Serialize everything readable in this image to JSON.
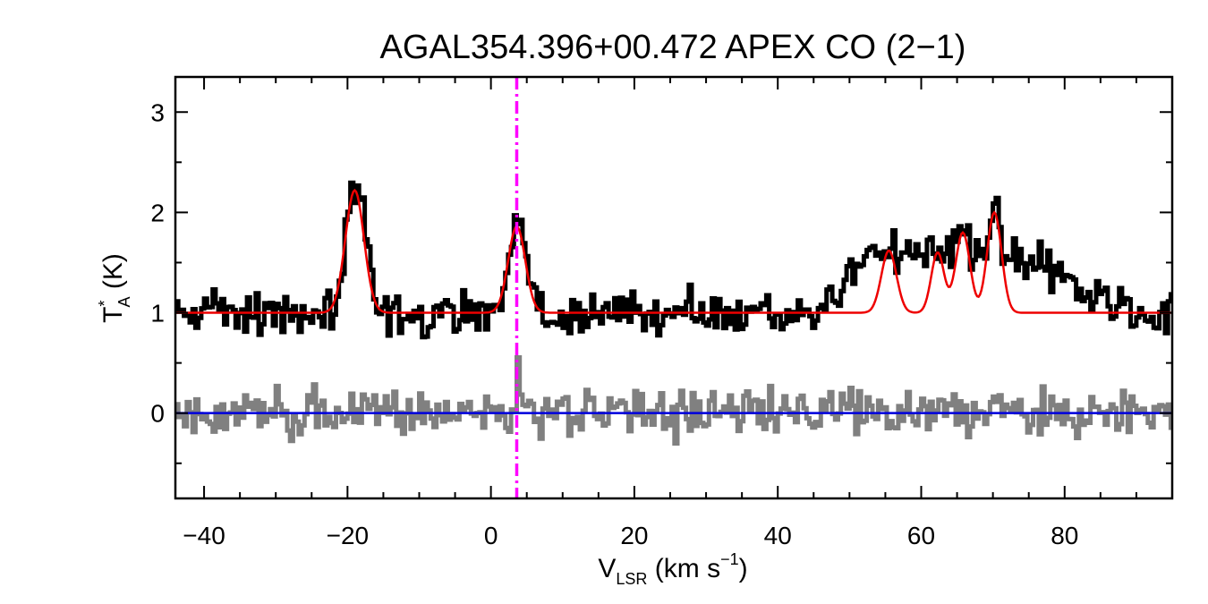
{
  "chart_data": {
    "type": "line",
    "title": "AGAL354.396+00.472  APEX CO (2−1)",
    "xlabel": {
      "main": "V",
      "sub": "LSR",
      "unit_open": " (km s",
      "sup": "−1",
      "unit_close": ")"
    },
    "ylabel": {
      "main": "T",
      "sup": "*",
      "sub": "A",
      "unit": " (K)"
    },
    "xlim": [
      -44,
      95
    ],
    "ylim": [
      -0.85,
      3.35
    ],
    "xticks": [
      -40,
      -20,
      0,
      20,
      40,
      60,
      80
    ],
    "xtick_labels": [
      "−40",
      "−20",
      "0",
      "20",
      "40",
      "60",
      "80"
    ],
    "xminor": [
      -35,
      -30,
      -25,
      -15,
      -10,
      -5,
      5,
      10,
      15,
      25,
      30,
      35,
      45,
      50,
      55,
      65,
      70,
      75,
      85,
      90
    ],
    "yticks": [
      0,
      1,
      2,
      3
    ],
    "ytick_labels": [
      "0",
      "1",
      "2",
      "3"
    ],
    "yminor": [
      -0.5,
      0.5,
      1.5,
      2.5
    ],
    "marker_velocity": 3.6,
    "spectrum_baseline": 1.0,
    "residual_baseline": 0.0,
    "channel_width": 0.4,
    "gaussian_components": [
      {
        "center": -19.0,
        "amplitude": 1.22,
        "sigma": 1.3
      },
      {
        "center": 3.6,
        "amplitude": 0.86,
        "sigma": 1.2
      },
      {
        "center": 55.5,
        "amplitude": 0.62,
        "sigma": 1.05
      },
      {
        "center": 62.3,
        "amplitude": 0.6,
        "sigma": 0.9
      },
      {
        "center": 65.8,
        "amplitude": 0.8,
        "sigma": 1.0
      },
      {
        "center": 70.2,
        "amplitude": 1.0,
        "sigma": 1.0
      }
    ],
    "broad_emission": {
      "start": 45,
      "peak_start": 52,
      "peak_end": 72,
      "end": 90,
      "level": 0.55
    },
    "series": [
      {
        "name": "observed spectrum",
        "color": "#000000",
        "offset": 1.0,
        "noise": 0.11
      },
      {
        "name": "gaussian fit",
        "color": "#ee0000",
        "offset": 1.0
      },
      {
        "name": "residuals",
        "color": "#808080",
        "offset": 0.0,
        "noise": 0.12
      },
      {
        "name": "zero level",
        "color": "#0000dd",
        "value": 0.0
      },
      {
        "name": "systemic velocity",
        "color": "#ff00ff"
      }
    ]
  }
}
